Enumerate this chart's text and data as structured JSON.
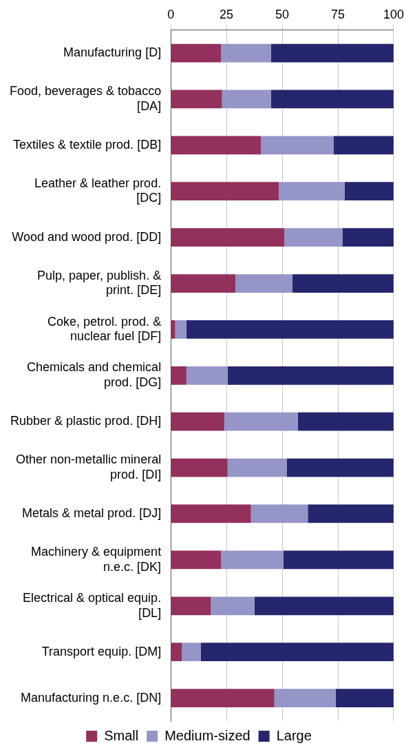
{
  "chart_data": {
    "type": "bar",
    "orientation": "horizontal",
    "stacked": true,
    "categories": [
      "Manufacturing [D]",
      "Food, beverages & tobacco [DA]",
      "Textiles & textile prod. [DB]",
      "Leather & leather prod. [DC]",
      "Wood and wood prod. [DD]",
      "Pulp, paper, publish. & print. [DE]",
      "Coke, petrol. prod. & nuclear fuel [DF]",
      "Chemicals and chemical prod. [DG]",
      "Rubber & plastic prod. [DH]",
      "Other non-metallic mineral prod. [DI]",
      "Metals & metal prod. [DJ]",
      "Machinery & equipment n.e.c. [DK]",
      "Electrical & optical equip. [DL]",
      "Transport equip. [DM]",
      "Manufacturing n.e.c. [DN]"
    ],
    "series": [
      {
        "name": "Small",
        "color": "#93305c",
        "values": [
          22.5,
          23,
          40.5,
          48.5,
          51,
          29,
          2,
          7,
          24,
          25.5,
          36,
          22.5,
          18,
          5,
          46.5
        ]
      },
      {
        "name": "Medium-sized",
        "color": "#9595c8",
        "values": [
          22.5,
          22,
          32.5,
          29.5,
          26,
          25.5,
          5,
          18.5,
          33,
          26.5,
          25.5,
          28,
          19.5,
          8.5,
          27.5
        ]
      },
      {
        "name": "Large",
        "color": "#26266e",
        "values": [
          55,
          55,
          27,
          22,
          23,
          45.5,
          93,
          74.5,
          43,
          48,
          38.5,
          49.5,
          62.5,
          86.5,
          26
        ]
      }
    ],
    "xlim": [
      0,
      100
    ],
    "xticks": [
      0,
      25,
      50,
      75,
      100
    ],
    "grid": "x",
    "legend": "bottom"
  }
}
